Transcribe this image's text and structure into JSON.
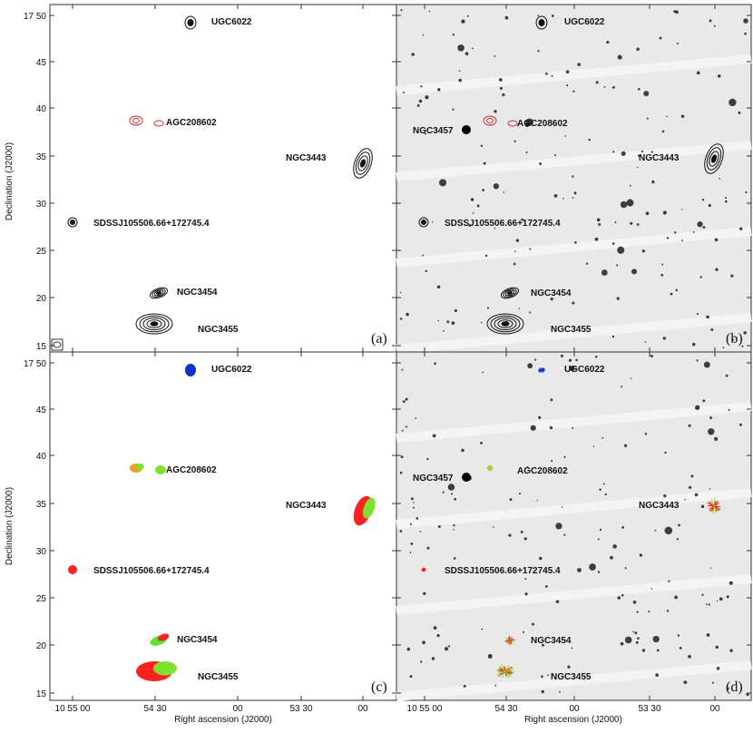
{
  "figure": {
    "y_axis_label": "Declination (J2000)",
    "x_axis_label": "Right ascension (J2000)",
    "dec_ticks": [
      "17 50",
      "45",
      "40",
      "35",
      "30",
      "25",
      "20",
      "15"
    ],
    "ra_ticks": [
      "10 55 00",
      "54 30",
      "00",
      "53 30",
      "00"
    ],
    "panels": [
      {
        "label": "(a)",
        "sources": [
          "UGC6022",
          "AGC208602",
          "NGC3443",
          "SDSSJ105506.66+172745.4",
          "NGC3454",
          "NGC3455"
        ]
      },
      {
        "label": "(b)",
        "sources": [
          "UGC6022",
          "NGC3457",
          "AGC208602",
          "NGC3443",
          "SDSSJ105506.66+172745.4",
          "NGC3454",
          "NGC3455"
        ]
      },
      {
        "label": "(c)",
        "sources": [
          "UGC6022",
          "AGC208602",
          "NGC3443",
          "SDSSJ105506.66+172745.4",
          "NGC3454",
          "NGC3455"
        ]
      },
      {
        "label": "(d)",
        "sources": [
          "UGC6022",
          "NGC3457",
          "AGC208602",
          "NGC3443",
          "SDSSJ105506.66+172745.4",
          "NGC3454",
          "NGC3455"
        ]
      }
    ]
  }
}
